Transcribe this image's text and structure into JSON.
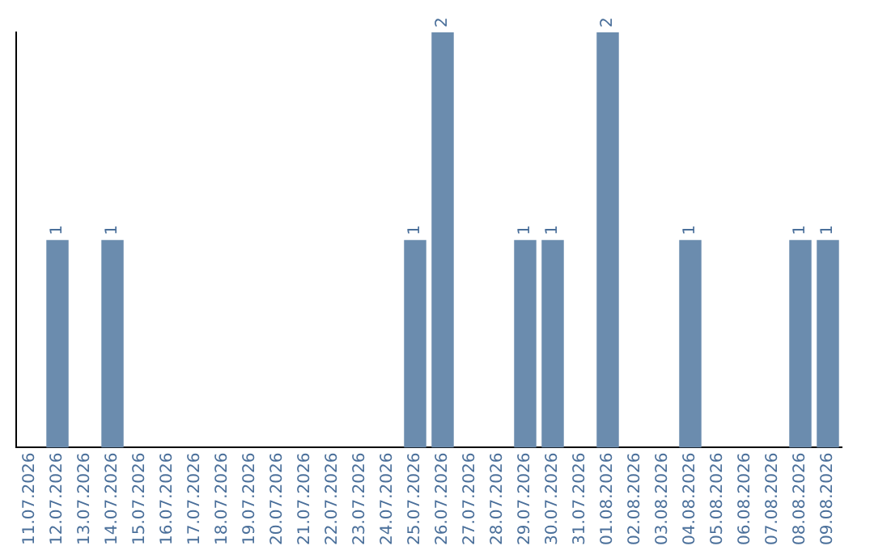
{
  "chart_data": {
    "type": "bar",
    "categories": [
      "11.07.2026",
      "12.07.2026",
      "13.07.2026",
      "14.07.2026",
      "15.07.2026",
      "16.07.2026",
      "17.07.2026",
      "18.07.2026",
      "19.07.2026",
      "20.07.2026",
      "21.07.2026",
      "22.07.2026",
      "23.07.2026",
      "24.07.2026",
      "25.07.2026",
      "26.07.2026",
      "27.07.2026",
      "28.07.2026",
      "29.07.2026",
      "30.07.2026",
      "31.07.2026",
      "01.08.2026",
      "02.08.2026",
      "03.08.2026",
      "04.08.2026",
      "05.08.2026",
      "06.08.2026",
      "07.08.2026",
      "08.08.2026",
      "09.08.2026"
    ],
    "values": [
      0,
      1,
      0,
      1,
      0,
      0,
      0,
      0,
      0,
      0,
      0,
      0,
      0,
      0,
      1,
      2,
      0,
      0,
      1,
      1,
      0,
      2,
      0,
      0,
      1,
      0,
      0,
      0,
      1,
      1
    ],
    "value_labels": [
      null,
      "1",
      null,
      "1",
      null,
      null,
      null,
      null,
      null,
      null,
      null,
      null,
      null,
      null,
      "1",
      "2",
      null,
      null,
      "1",
      "1",
      null,
      "2",
      null,
      null,
      "1",
      null,
      null,
      null,
      "1",
      "1"
    ],
    "color": "#6b8cae",
    "grid": false,
    "legend": false,
    "tick_labels": "x"
  }
}
